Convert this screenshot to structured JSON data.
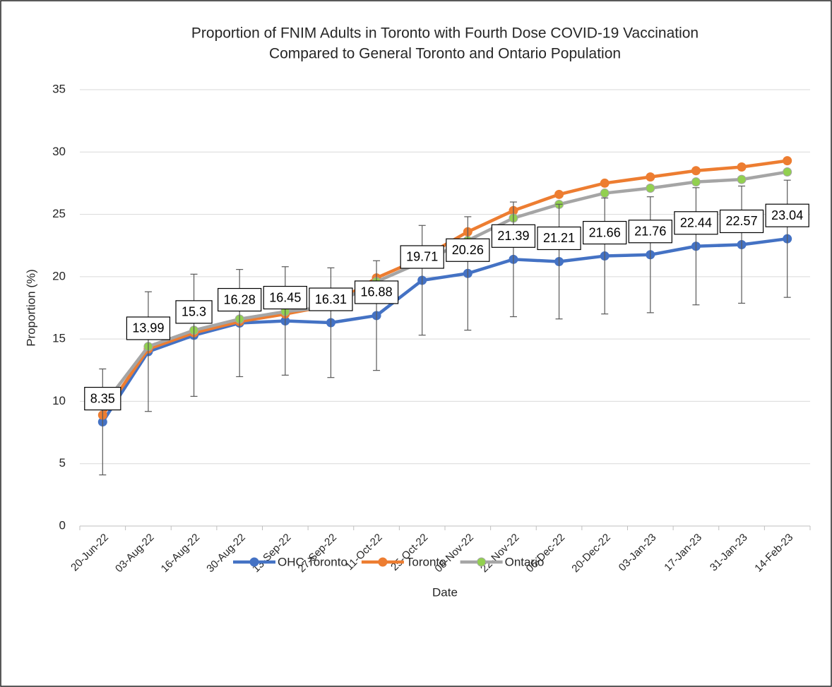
{
  "chart_data": {
    "type": "line",
    "title": "Proportion of FNIM Adults in Toronto with Fourth Dose COVID-19 Vaccination",
    "subtitle": "Compared to General Toronto and Ontario Population",
    "x_label": "Date",
    "y_label": "Proportion (%)",
    "categories": [
      "20-Jun-22",
      "03-Aug-22",
      "16-Aug-22",
      "30-Aug-22",
      "13-Sep-22",
      "27-Sep-22",
      "11-Oct-22",
      "25-Oct-22",
      "08-Nov-22",
      "22-Nov-22",
      "06-Dec-22",
      "20-Dec-22",
      "03-Jan-23",
      "17-Jan-23",
      "31-Jan-23",
      "14-Feb-23"
    ],
    "series": [
      {
        "name": "OHC Toronto",
        "color": "#4472c4",
        "marker_color": "#4472c4",
        "values": [
          8.35,
          13.99,
          15.3,
          16.28,
          16.45,
          16.31,
          16.88,
          19.71,
          20.26,
          21.39,
          21.21,
          21.66,
          21.76,
          22.44,
          22.57,
          23.04
        ],
        "errors": [
          4.25,
          4.8,
          4.9,
          4.3,
          4.35,
          4.4,
          4.4,
          4.4,
          4.55,
          4.6,
          4.6,
          4.65,
          4.65,
          4.7,
          4.7,
          4.7
        ],
        "data_labels": true
      },
      {
        "name": "Toronto",
        "color": "#ed7d31",
        "marker_color": "#ed7d31",
        "values": [
          8.9,
          14.2,
          15.5,
          16.4,
          17.0,
          17.7,
          19.9,
          21.5,
          23.6,
          25.3,
          26.6,
          27.5,
          28.0,
          28.5,
          28.8,
          29.3
        ]
      },
      {
        "name": "Ontario",
        "color": "#a5a5a5",
        "marker_color": "#92d050",
        "values": [
          9.6,
          14.4,
          15.7,
          16.6,
          17.2,
          17.6,
          19.6,
          21.2,
          22.9,
          24.7,
          25.8,
          26.7,
          27.1,
          27.6,
          27.8,
          28.4
        ]
      }
    ],
    "ylim": [
      0,
      35
    ],
    "yticks": [
      0,
      5,
      10,
      15,
      20,
      25,
      30,
      35
    ],
    "grid": true,
    "legend": "bottom"
  }
}
